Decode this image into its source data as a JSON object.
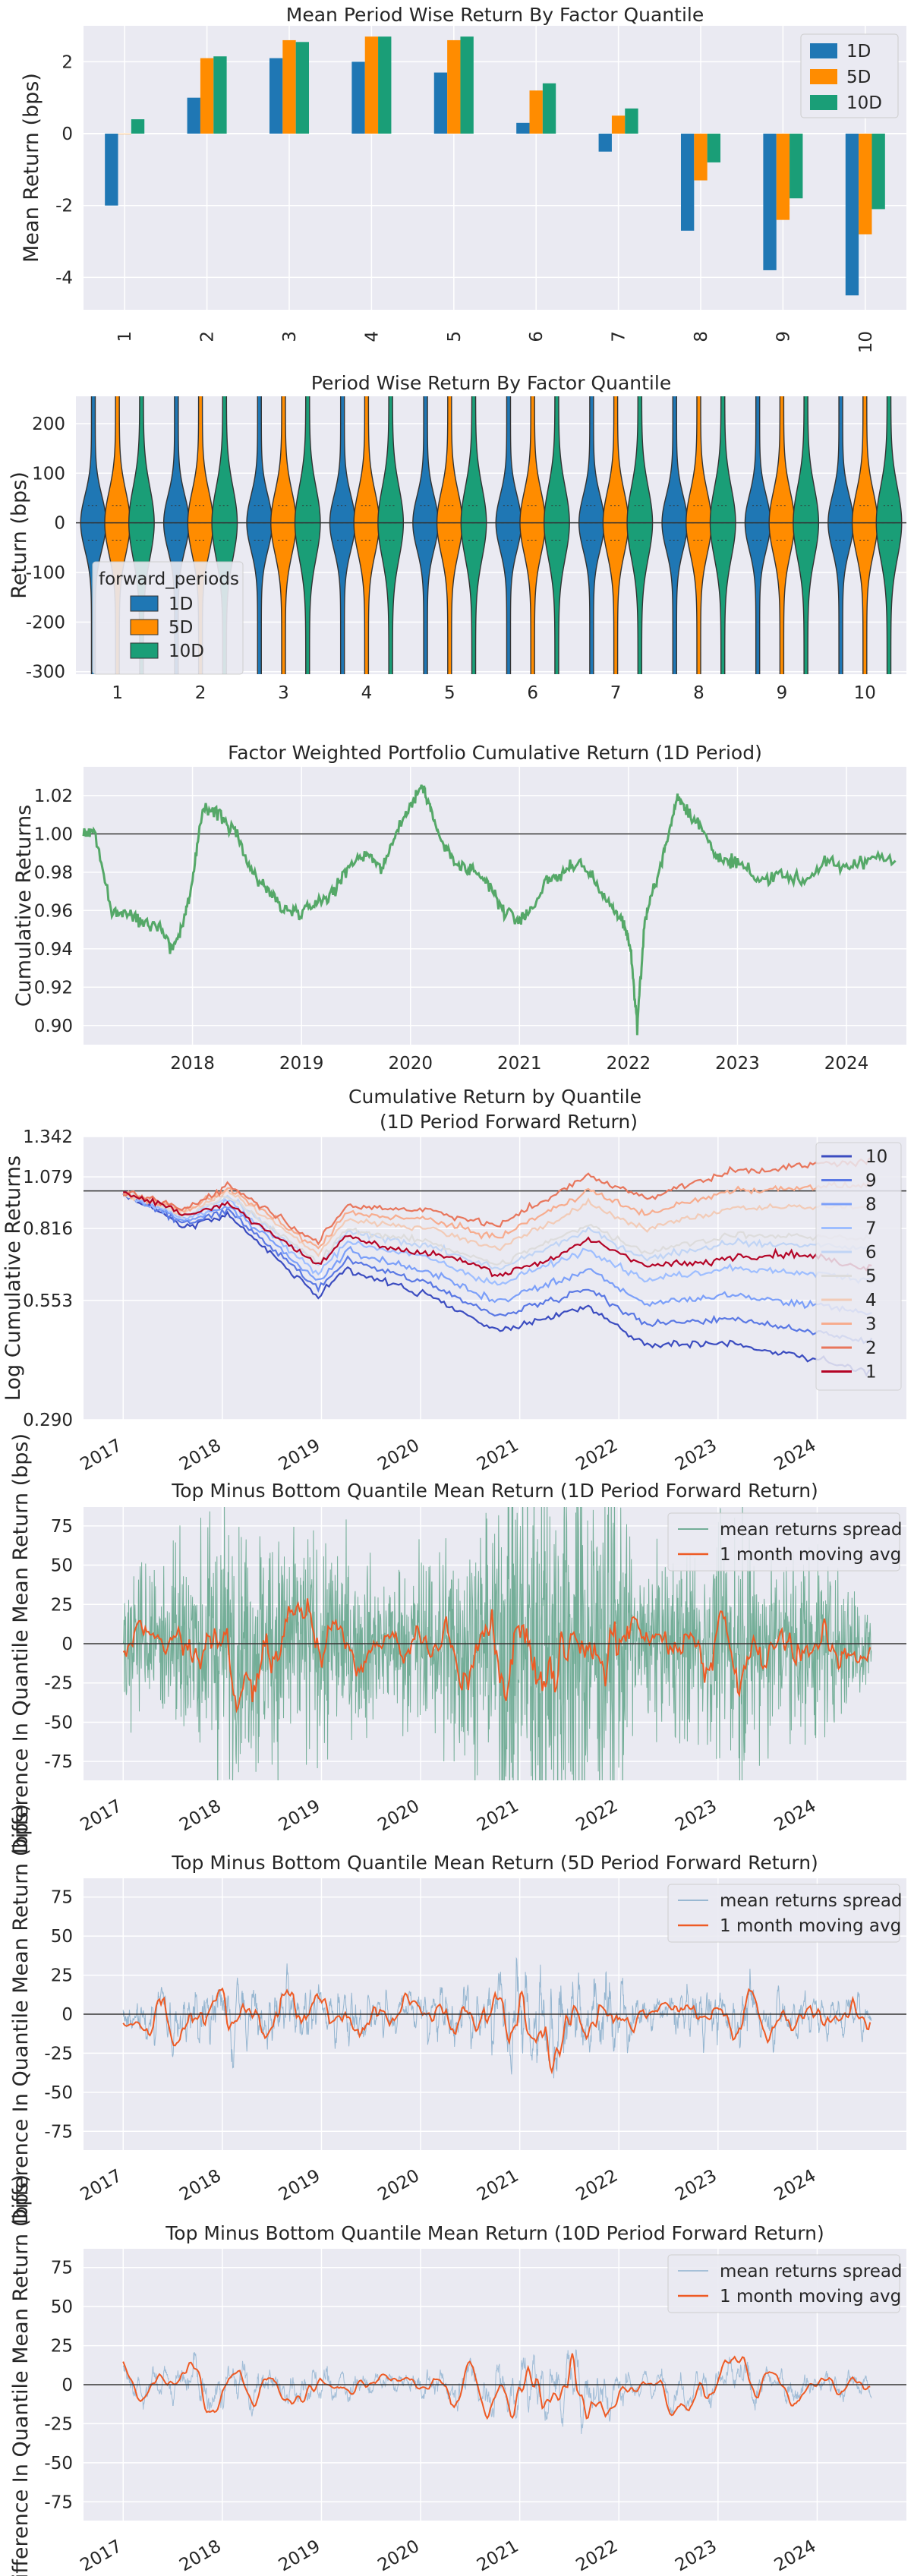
{
  "chart_data": [
    {
      "type": "bar",
      "title": "Mean Period Wise Return By Factor Quantile",
      "xlabel": "",
      "ylabel": "Mean Return (bps)",
      "ylim": [
        -4.9,
        3.0
      ],
      "yticks": [
        -4,
        -2,
        0,
        2
      ],
      "categories": [
        "1",
        "2",
        "3",
        "4",
        "5",
        "6",
        "7",
        "8",
        "9",
        "10"
      ],
      "series": [
        {
          "name": "1D",
          "color": "#1f77b4",
          "values": [
            -2.0,
            1.0,
            2.1,
            2.0,
            1.7,
            0.3,
            -0.5,
            -2.7,
            -3.8,
            -4.5
          ]
        },
        {
          "name": "5D",
          "color": "#ff8c00",
          "values": [
            0.0,
            2.1,
            2.6,
            2.7,
            2.6,
            1.2,
            0.5,
            -1.3,
            -2.4,
            -2.8
          ]
        },
        {
          "name": "10D",
          "color": "#1a9e77",
          "values": [
            0.4,
            2.15,
            2.55,
            2.7,
            2.7,
            1.4,
            0.7,
            -0.8,
            -1.8,
            -2.1
          ]
        }
      ],
      "legend": "top-right",
      "grid": true
    },
    {
      "type": "violin",
      "title": "Period Wise Return By Factor Quantile",
      "xlabel": "",
      "ylabel": "Return (bps)",
      "ylim": [
        -305,
        255
      ],
      "yticks": [
        -300,
        -200,
        -100,
        0,
        100,
        200
      ],
      "categories": [
        "1",
        "2",
        "3",
        "4",
        "5",
        "6",
        "7",
        "8",
        "9",
        "10"
      ],
      "legend_title": "forward_periods",
      "legend": "left",
      "series": [
        {
          "name": "1D",
          "color": "#1f77b4"
        },
        {
          "name": "5D",
          "color": "#ff8c00"
        },
        {
          "name": "10D",
          "color": "#1a9e77"
        }
      ]
    },
    {
      "type": "line",
      "title": "Factor Weighted Portfolio Cumulative Return (1D Period)",
      "ylabel": "Cumulative Returns",
      "xticks": [
        "2018",
        "2019",
        "2020",
        "2021",
        "2022",
        "2023",
        "2024"
      ],
      "ylim": [
        0.89,
        1.035
      ],
      "yticks": [
        0.9,
        0.92,
        0.94,
        0.96,
        0.98,
        1.0,
        1.02
      ],
      "hline": 1.0,
      "series": [
        {
          "name": "cumulative return",
          "color": "#55a868",
          "x": [
            2017.0,
            2017.1,
            2017.25,
            2017.4,
            2017.55,
            2017.7,
            2017.82,
            2017.92,
            2018.0,
            2018.1,
            2018.25,
            2018.4,
            2018.55,
            2018.7,
            2018.85,
            2019.0,
            2019.15,
            2019.3,
            2019.45,
            2019.6,
            2019.75,
            2019.9,
            2020.0,
            2020.1,
            2020.15,
            2020.25,
            2020.4,
            2020.55,
            2020.7,
            2020.85,
            2021.0,
            2021.1,
            2021.25,
            2021.4,
            2021.55,
            2021.7,
            2021.85,
            2021.95,
            2022.02,
            2022.08,
            2022.15,
            2022.25,
            2022.35,
            2022.45,
            2022.55,
            2022.7,
            2022.85,
            2023.0,
            2023.2,
            2023.4,
            2023.6,
            2023.8,
            2024.0,
            2024.2,
            2024.45
          ],
          "y": [
            1.0,
            1.002,
            0.96,
            0.958,
            0.955,
            0.952,
            0.94,
            0.955,
            0.975,
            1.015,
            1.01,
            1.0,
            0.98,
            0.97,
            0.96,
            0.96,
            0.965,
            0.97,
            0.985,
            0.99,
            0.982,
            1.005,
            1.015,
            1.025,
            1.02,
            1.0,
            0.985,
            0.98,
            0.975,
            0.96,
            0.955,
            0.96,
            0.975,
            0.98,
            0.985,
            0.975,
            0.96,
            0.955,
            0.94,
            0.9,
            0.955,
            0.975,
            0.995,
            1.02,
            1.012,
            1.0,
            0.985,
            0.985,
            0.975,
            0.98,
            0.975,
            0.985,
            0.982,
            0.988,
            0.986
          ]
        }
      ]
    },
    {
      "type": "line",
      "title_line1": "Cumulative Return by Quantile",
      "title_line2": "(1D Period Forward Return)",
      "ylabel": "Log Cumulative Returns",
      "yscale": "log",
      "ylim": [
        0.29,
        1.342
      ],
      "yticks": [
        "0.290",
        "0.553",
        "0.816",
        "1.079",
        "1.342"
      ],
      "xticks": [
        "2017",
        "2018",
        "2019",
        "2020",
        "2021",
        "2022",
        "2023",
        "2024"
      ],
      "hline": 1.0,
      "legend": "right",
      "series": [
        {
          "name": "10",
          "color": "#3b4cc0",
          "end": 0.4
        },
        {
          "name": "9",
          "color": "#5a78e4",
          "end": 0.47
        },
        {
          "name": "8",
          "color": "#7b9ff9",
          "end": 0.55
        },
        {
          "name": "7",
          "color": "#9ebeff",
          "end": 0.66
        },
        {
          "name": "6",
          "color": "#c0d4f5",
          "end": 0.78
        },
        {
          "name": "5",
          "color": "#dddcdc",
          "end": 0.82
        },
        {
          "name": "4",
          "color": "#f2cbb7",
          "end": 0.98
        },
        {
          "name": "3",
          "color": "#f7ac8e",
          "end": 1.1
        },
        {
          "name": "2",
          "color": "#e8765c",
          "end": 1.25
        },
        {
          "name": "1",
          "color": "#b40426",
          "end": 0.72
        }
      ]
    },
    {
      "type": "line",
      "title": "Top Minus Bottom Quantile Mean Return (1D Period Forward Return)",
      "ylabel": "Difference In Quantile Mean Return (bps)",
      "ylim": [
        -87,
        87
      ],
      "yticks": [
        -75,
        -50,
        -25,
        0,
        25,
        50,
        75
      ],
      "xticks": [
        "2017",
        "2018",
        "2019",
        "2020",
        "2021",
        "2022",
        "2023",
        "2024"
      ],
      "legend": "top-right",
      "series": [
        {
          "name": "mean returns spread",
          "color": "#4c9a7a"
        },
        {
          "name": "1 month moving avg",
          "color": "#ee5a24"
        }
      ]
    },
    {
      "type": "line",
      "title": "Top Minus Bottom Quantile Mean Return (5D Period Forward Return)",
      "ylabel": "Difference In Quantile Mean Return (bps)",
      "ylim": [
        -87,
        87
      ],
      "yticks": [
        -75,
        -50,
        -25,
        0,
        25,
        50,
        75
      ],
      "xticks": [
        "2017",
        "2018",
        "2019",
        "2020",
        "2021",
        "2022",
        "2023",
        "2024"
      ],
      "legend": "top-right",
      "series": [
        {
          "name": "mean returns spread",
          "color": "#7ea7c7"
        },
        {
          "name": "1 month moving avg",
          "color": "#ee5a24"
        }
      ]
    },
    {
      "type": "line",
      "title": "Top Minus Bottom Quantile Mean Return (10D Period Forward Return)",
      "ylabel": "Difference In Quantile Mean Return (bps)",
      "ylim": [
        -87,
        87
      ],
      "yticks": [
        -75,
        -50,
        -25,
        0,
        25,
        50,
        75
      ],
      "xticks": [
        "2017",
        "2018",
        "2019",
        "2020",
        "2021",
        "2022",
        "2023",
        "2024"
      ],
      "legend": "top-right",
      "series": [
        {
          "name": "mean returns spread",
          "color": "#8fb2d0"
        },
        {
          "name": "1 month moving avg",
          "color": "#ee5a24"
        }
      ]
    }
  ]
}
